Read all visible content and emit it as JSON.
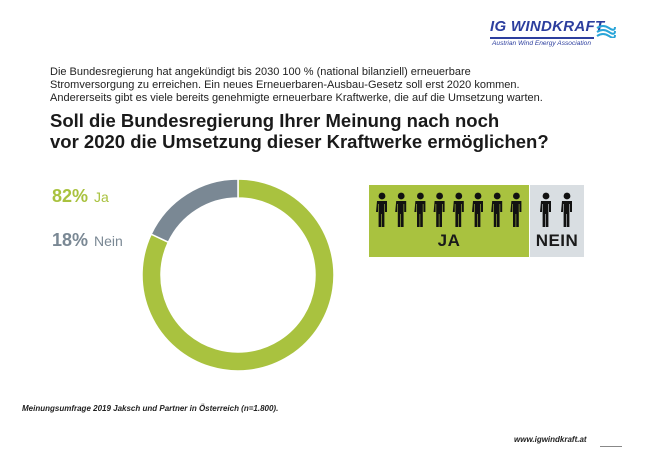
{
  "logo": {
    "name": "IG WINDKRAFT",
    "subtitle": "Austrian Wind Energy Association"
  },
  "intro": {
    "line1": "Die Bundesregierung hat angekündigt bis 2030 100 % (national bilanziell) erneuerbare",
    "line2": "Stromversorgung zu erreichen. Ein neues Erneuerbaren-Ausbau-Gesetz soll erst 2020 kommen.",
    "line3": "Andererseits gibt es viele bereits genehmigte erneuerbare Kraftwerke, die auf die Umsetzung warten."
  },
  "question": {
    "line1": "Soll die Bundesregierung Ihrer Meinung nach noch",
    "line2": "vor 2020 die Umsetzung dieser Kraftwerke ermöglichen?"
  },
  "chart_data": {
    "type": "pie",
    "donut": true,
    "slices": [
      {
        "label": "Ja",
        "value": 82,
        "display": "82%",
        "color": "#a9c23f"
      },
      {
        "label": "Nein",
        "value": 18,
        "display": "18%",
        "color": "#7a8894"
      }
    ]
  },
  "people_graphic": {
    "ja_label": "JA",
    "nein_label": "NEIN",
    "ja_count": 8,
    "nein_count": 2,
    "ja_color": "#a9c23f",
    "nein_color": "#d9dee2"
  },
  "footer": {
    "source": "Meinungsumfrage 2019 Jaksch und Partner in Österreich (n=1.800).",
    "url": "www.igwindkraft.at"
  }
}
